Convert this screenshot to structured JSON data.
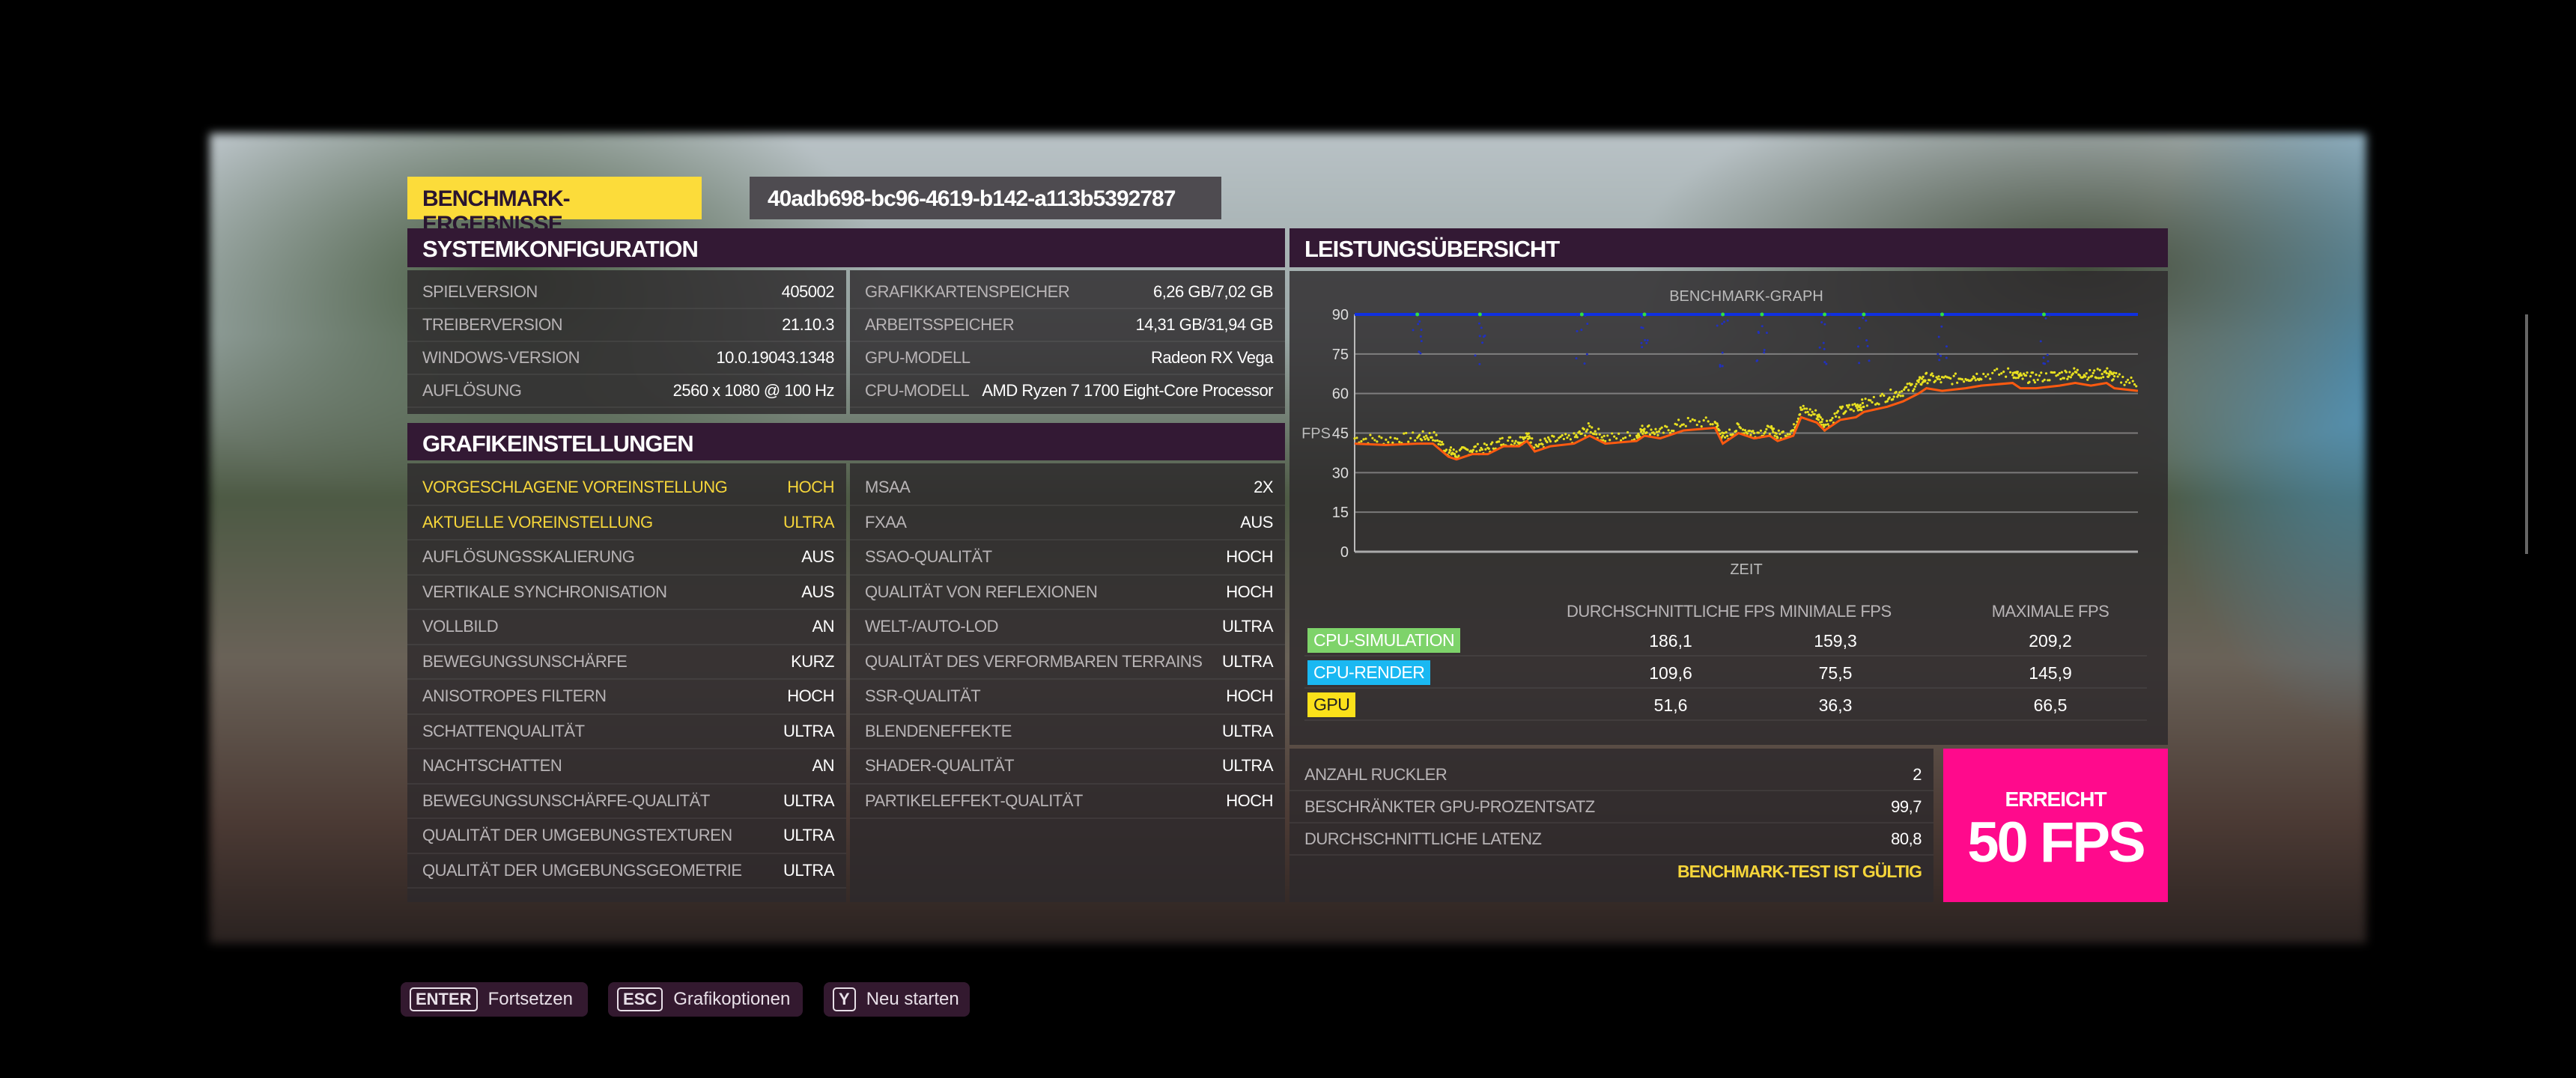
{
  "header": {
    "title": "BENCHMARK-ERGEBNISSE",
    "benchmark_id": "40adb698-bc96-4619-b142-a113b5392787"
  },
  "system": {
    "title": "SYSTEMKONFIGURATION",
    "left": [
      {
        "label": "SPIELVERSION",
        "value": "405002"
      },
      {
        "label": "TREIBERVERSION",
        "value": "21.10.3"
      },
      {
        "label": "WINDOWS-VERSION",
        "value": "10.0.19043.1348"
      },
      {
        "label": "AUFLÖSUNG",
        "value": "2560 x 1080 @ 100 Hz"
      }
    ],
    "right": [
      {
        "label": "GRAFIKKARTENSPEICHER",
        "value": "6,26 GB/7,02 GB"
      },
      {
        "label": "ARBEITSSPEICHER",
        "value": "14,31 GB/31,94 GB"
      },
      {
        "label": "GPU-MODELL",
        "value": "Radeon RX Vega"
      },
      {
        "label": "CPU-MODELL",
        "value": "AMD Ryzen 7 1700 Eight-Core Processor"
      }
    ]
  },
  "graphics": {
    "title": "GRAFIKEINSTELLUNGEN",
    "left": [
      {
        "label": "VORGESCHLAGENE VOREINSTELLUNG",
        "value": "HOCH"
      },
      {
        "label": "AKTUELLE VOREINSTELLUNG",
        "value": "ULTRA"
      },
      {
        "label": "AUFLÖSUNGSSKALIERUNG",
        "value": "AUS"
      },
      {
        "label": "VERTIKALE SYNCHRONISATION",
        "value": "AUS"
      },
      {
        "label": "VOLLBILD",
        "value": "AN"
      },
      {
        "label": "BEWEGUNGSUNSCHÄRFE",
        "value": "KURZ"
      },
      {
        "label": "ANISOTROPES FILTERN",
        "value": "HOCH"
      },
      {
        "label": "SCHATTENQUALITÄT",
        "value": "ULTRA"
      },
      {
        "label": "NACHTSCHATTEN",
        "value": "AN"
      },
      {
        "label": "BEWEGUNGSUNSCHÄRFE-QUALITÄT",
        "value": "ULTRA"
      },
      {
        "label": "QUALITÄT DER UMGEBUNGSTEXTUREN",
        "value": "ULTRA"
      },
      {
        "label": "QUALITÄT DER UMGEBUNGSGEOMETRIE",
        "value": "ULTRA"
      }
    ],
    "right": [
      {
        "label": "MSAA",
        "value": "2X"
      },
      {
        "label": "FXAA",
        "value": "AUS"
      },
      {
        "label": "SSAO-QUALITÄT",
        "value": "HOCH"
      },
      {
        "label": "QUALITÄT VON REFLEXIONEN",
        "value": "HOCH"
      },
      {
        "label": "WELT-/AUTO-LOD",
        "value": "ULTRA"
      },
      {
        "label": "QUALITÄT DES VERFORMBAREN TERRAINS",
        "value": "ULTRA"
      },
      {
        "label": "SSR-QUALITÄT",
        "value": "HOCH"
      },
      {
        "label": "BLENDENEFFEKTE",
        "value": "ULTRA"
      },
      {
        "label": "SHADER-QUALITÄT",
        "value": "ULTRA"
      },
      {
        "label": "PARTIKELEFFEKT-QUALITÄT",
        "value": "HOCH"
      }
    ]
  },
  "performance": {
    "title": "LEISTUNGSÜBERSICHT",
    "columns": [
      "DURCHSCHNITTLICHE FPS",
      "MINIMALE FPS",
      "MAXIMALE FPS"
    ],
    "rows": [
      {
        "label": "CPU-SIMULATION",
        "color": "#7ed36a",
        "avg": "186,1",
        "min": "159,3",
        "max": "209,2"
      },
      {
        "label": "CPU-RENDER",
        "color": "#1ab8f2",
        "avg": "109,6",
        "min": "75,5",
        "max": "145,9"
      },
      {
        "label": "GPU",
        "color": "#fbe11a",
        "avg": "51,6",
        "min": "36,3",
        "max": "66,5"
      }
    ],
    "summary": [
      {
        "label": "ANZAHL RUCKLER",
        "value": "2"
      },
      {
        "label": "BESCHRÄNKTER GPU-PROZENTSATZ",
        "value": "99,7"
      },
      {
        "label": "DURCHSCHNITTLICHE LATENZ",
        "value": "80,8"
      }
    ],
    "valid_text": "BENCHMARK-TEST IST GÜLTIG",
    "result_label": "ERREICHT",
    "result_value": "50 FPS",
    "result_color": "#ff0a8c"
  },
  "chart_data": {
    "type": "line",
    "title": "BENCHMARK-GRAPH",
    "xlabel": "ZEIT",
    "ylabel": "FPS",
    "ylim": [
      0,
      90
    ],
    "yticks": [
      "0",
      "15",
      "30",
      "45",
      "60",
      "75",
      "90"
    ],
    "grid": true,
    "x_percent": [
      0,
      4,
      8,
      10,
      12,
      13,
      15,
      17,
      19,
      21,
      22,
      23,
      25,
      28,
      30,
      32,
      36,
      37,
      39,
      42,
      46,
      47,
      49,
      51,
      53,
      54,
      56,
      57,
      59,
      60,
      62,
      64,
      65,
      68,
      70,
      72,
      73,
      75,
      78,
      80,
      84,
      85,
      87,
      90,
      92,
      94,
      96,
      97,
      100
    ],
    "series": [
      {
        "color": "#ff5a10",
        "values": [
          41,
          40.5,
          41,
          41,
          36,
          35,
          37,
          37,
          40,
          40,
          42,
          38,
          40,
          41,
          44,
          41,
          42,
          44,
          43,
          46,
          47,
          41,
          45,
          43,
          44,
          42,
          44,
          51,
          49,
          46,
          50,
          51,
          53,
          55,
          57,
          60,
          62,
          61,
          62,
          63,
          64,
          62,
          62,
          63,
          64,
          63,
          64,
          62,
          61
        ]
      },
      {
        "color": "#e8e020",
        "values": [
          43,
          42.5,
          43.5,
          44,
          38,
          37,
          39,
          39,
          42,
          42,
          44,
          40,
          42,
          43,
          47,
          43,
          44,
          47,
          45,
          49,
          49,
          43,
          47,
          45,
          46,
          44,
          46,
          54,
          52,
          48,
          53,
          55,
          56,
          59,
          61,
          64,
          66,
          65,
          66,
          67,
          68,
          66,
          66,
          67,
          68,
          67,
          68,
          66,
          64
        ]
      },
      {
        "color": "#1030e0",
        "values": [
          90,
          90,
          90,
          90,
          90,
          90,
          90,
          90,
          90,
          90,
          90,
          90,
          90,
          90,
          90,
          90,
          90,
          90,
          90,
          90,
          90,
          90,
          90,
          90,
          90,
          90,
          90,
          90,
          90,
          90,
          90,
          90,
          90,
          90,
          90,
          90,
          90,
          90,
          90,
          90,
          90,
          90,
          90,
          90,
          90,
          90,
          90,
          90,
          90
        ]
      }
    ]
  },
  "footer": [
    {
      "key": "ENTER",
      "label": "Fortsetzen"
    },
    {
      "key": "ESC",
      "label": "Grafikoptionen"
    },
    {
      "key": "Y",
      "label": "Neu starten"
    }
  ]
}
